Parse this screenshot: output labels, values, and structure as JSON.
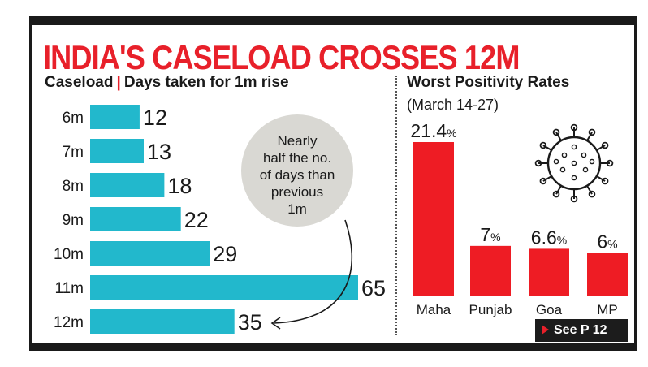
{
  "header": {
    "title": "INDIA'S CASELOAD CROSSES 12M"
  },
  "left_panel": {
    "label_caseload": "Caseload",
    "label_separator": "|",
    "label_days": "Days taken for 1m rise"
  },
  "right_panel": {
    "title": "Worst Positivity Rates",
    "subtitle": "(March 14-27)"
  },
  "callout": {
    "lines": [
      "Nearly",
      "half the no.",
      "of days than",
      "previous",
      "1m"
    ]
  },
  "footer": {
    "see_label": "See P 12"
  },
  "colors": {
    "bar_left": "#22b8cc",
    "bar_right": "#ee1c24",
    "title_red": "#e8202a",
    "text": "#1a1a1a",
    "callout_bg": "#d9d8d3"
  },
  "icons": {
    "virus": "virus-icon",
    "arrow": "curved-arrow-icon",
    "play": "play-triangle-icon"
  },
  "chart_data": [
    {
      "type": "bar",
      "orientation": "horizontal",
      "categories": [
        "6m",
        "7m",
        "8m",
        "9m",
        "10m",
        "11m",
        "12m"
      ],
      "values": [
        12,
        13,
        18,
        22,
        29,
        65,
        35
      ],
      "value_labels": [
        "12",
        "13",
        "18",
        "22",
        "29",
        "65",
        "35"
      ],
      "title": "Caseload | Days taken for 1m rise",
      "xlim": [
        0,
        65
      ]
    },
    {
      "type": "bar",
      "orientation": "vertical",
      "categories": [
        "Maha",
        "Punjab",
        "Goa",
        "MP"
      ],
      "values": [
        21.4,
        7,
        6.6,
        6
      ],
      "value_labels": [
        "21.4",
        "7",
        "6.6",
        "6"
      ],
      "unit": "%",
      "title": "Worst Positivity Rates",
      "subtitle": "(March 14-27)",
      "ylim": [
        0,
        21.4
      ]
    }
  ]
}
